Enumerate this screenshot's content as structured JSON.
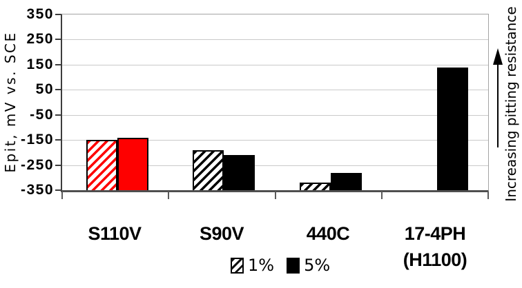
{
  "chart_data": {
    "type": "bar",
    "title": "",
    "ylabel": "Epit, mV vs. SCE",
    "ylim": [
      -350,
      350
    ],
    "yticks": [
      350,
      250,
      150,
      50,
      -50,
      -150,
      -250,
      -350
    ],
    "grid": true,
    "legend_position": "bottom",
    "categories": [
      "S110V",
      "S90V",
      "440C",
      "17-4PH (H1100)"
    ],
    "category_labels": [
      [
        "S110V"
      ],
      [
        "S90V"
      ],
      [
        "440C"
      ],
      [
        "17-4PH",
        "(H1100)"
      ]
    ],
    "category_colors": [
      "#fe0000",
      "#000000",
      "#000000",
      "#000000"
    ],
    "series": [
      {
        "name": "1%",
        "pattern": "hatched",
        "values": [
          -150,
          -190,
          -320,
          null
        ]
      },
      {
        "name": "5%",
        "pattern": "solid",
        "values": [
          -140,
          -210,
          -280,
          140
        ]
      }
    ],
    "annotation": "Increasing pitting resistance"
  }
}
